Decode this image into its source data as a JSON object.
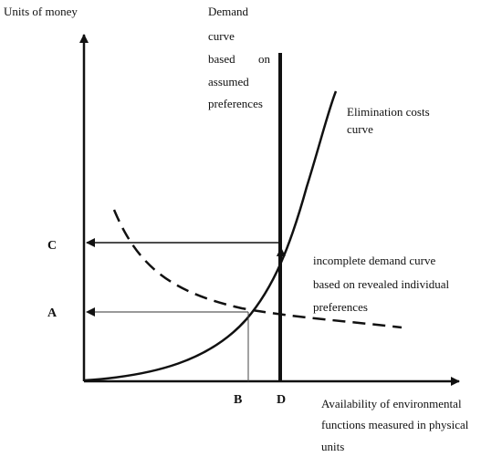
{
  "y_axis_label": "Units of money",
  "x_axis_label": [
    "Availability  of  environmental",
    "functions measured in physical",
    "units"
  ],
  "demand_assumed_label": [
    "Demand",
    "curve",
    "based",
    "on",
    "assumed",
    "preferences"
  ],
  "elimination_label": [
    "Elimination costs",
    "curve"
  ],
  "incomplete_label": [
    "incomplete demand curve",
    "based on revealed individual",
    "preferences"
  ],
  "points": {
    "C": "C",
    "A": "A",
    "B": "B",
    "D": "D"
  },
  "colors": {
    "ink": "#111111",
    "paper": "#ffffff",
    "thin": "#444444"
  }
}
